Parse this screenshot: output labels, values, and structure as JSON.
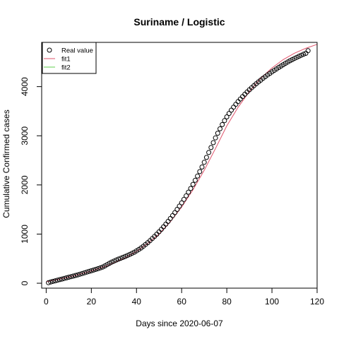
{
  "chart_data": {
    "type": "scatter",
    "title": "Suriname / Logistic",
    "xlabel": "Days since 2020-06-07",
    "ylabel": "Cumulative Confirmed cases",
    "xlim": [
      -2,
      120
    ],
    "ylim": [
      -100,
      4900
    ],
    "xticks": [
      0,
      20,
      40,
      60,
      80,
      100,
      120
    ],
    "yticks": [
      0,
      1000,
      2000,
      3000,
      4000
    ],
    "grid": false,
    "legend_position": "top-left",
    "legend": [
      {
        "label": "Real value",
        "style": "open-circle",
        "color": "#000000"
      },
      {
        "label": "fit1",
        "style": "line",
        "color": "#df536b"
      },
      {
        "label": "fit2",
        "style": "line",
        "color": "#61d04f"
      }
    ],
    "series": [
      {
        "name": "Real value",
        "type": "scatter",
        "x": [
          1,
          2,
          3,
          4,
          5,
          6,
          7,
          8,
          9,
          10,
          11,
          12,
          13,
          14,
          15,
          16,
          17,
          18,
          19,
          20,
          21,
          22,
          23,
          24,
          25,
          26,
          27,
          28,
          29,
          30,
          31,
          32,
          33,
          34,
          35,
          36,
          37,
          38,
          39,
          40,
          41,
          42,
          43,
          44,
          45,
          46,
          47,
          48,
          49,
          50,
          51,
          52,
          53,
          54,
          55,
          56,
          57,
          58,
          59,
          60,
          61,
          62,
          63,
          64,
          65,
          66,
          67,
          68,
          69,
          70,
          71,
          72,
          73,
          74,
          75,
          76,
          77,
          78,
          79,
          80,
          81,
          82,
          83,
          84,
          85,
          86,
          87,
          88,
          89,
          90,
          91,
          92,
          93,
          94,
          95,
          96,
          97,
          98,
          99,
          100,
          101,
          102,
          103,
          104,
          105,
          106,
          107,
          108,
          109,
          110,
          111,
          112,
          113,
          114,
          115,
          116
        ],
        "y": [
          10,
          25,
          38,
          50,
          62,
          74,
          86,
          98,
          110,
          122,
          134,
          146,
          158,
          170,
          184,
          198,
          212,
          226,
          240,
          254,
          268,
          282,
          296,
          312,
          330,
          352,
          378,
          404,
          430,
          450,
          470,
          490,
          508,
          526,
          545,
          565,
          586,
          608,
          632,
          658,
          688,
          718,
          752,
          788,
          826,
          866,
          908,
          952,
          998,
          1046,
          1096,
          1148,
          1202,
          1258,
          1316,
          1376,
          1438,
          1502,
          1568,
          1636,
          1706,
          1778,
          1852,
          1928,
          2010,
          2094,
          2180,
          2270,
          2364,
          2460,
          2560,
          2660,
          2760,
          2860,
          2958,
          3052,
          3142,
          3228,
          3308,
          3384,
          3454,
          3520,
          3582,
          3640,
          3696,
          3748,
          3798,
          3846,
          3892,
          3936,
          3978,
          4018,
          4058,
          4096,
          4132,
          4168,
          4202,
          4236,
          4268,
          4300,
          4330,
          4360,
          4390,
          4418,
          4446,
          4474,
          4500,
          4526,
          4550,
          4574,
          4596,
          4618,
          4638,
          4658,
          4678,
          4730
        ]
      },
      {
        "name": "fit1",
        "type": "line",
        "x": [
          0,
          5,
          10,
          15,
          20,
          25,
          30,
          35,
          40,
          45,
          50,
          55,
          60,
          65,
          70,
          75,
          80,
          85,
          90,
          95,
          100,
          105,
          110,
          115,
          120
        ],
        "y": [
          30,
          75,
          125,
          185,
          250,
          325,
          415,
          520,
          650,
          810,
          1000,
          1250,
          1550,
          1900,
          2300,
          2740,
          3200,
          3580,
          3900,
          4170,
          4380,
          4550,
          4680,
          4780,
          4860
        ]
      },
      {
        "name": "fit2",
        "type": "line",
        "x": [],
        "y": []
      }
    ]
  }
}
